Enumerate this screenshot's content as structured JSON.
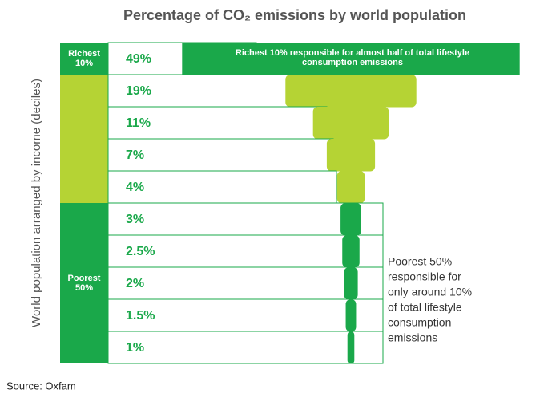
{
  "chart_data": {
    "type": "funnel",
    "title": "Percentage of CO₂ emissions by world population",
    "y_label": "World population arranged by income (deciles)",
    "values": [
      49,
      19,
      11,
      7,
      4,
      3,
      2.5,
      2,
      1.5,
      1
    ],
    "value_labels": [
      "49%",
      "19%",
      "11%",
      "7%",
      "4%",
      "3%",
      "2.5%",
      "2%",
      "1.5%",
      "1%"
    ],
    "colors": [
      "#1aa84a",
      "#b5d334",
      "#b5d334",
      "#b5d334",
      "#b5d334",
      "#1aa84a",
      "#1aa84a",
      "#1aa84a",
      "#1aa84a",
      "#1aa84a"
    ],
    "group_richest": [
      "Richest",
      "10%"
    ],
    "group_poorest": [
      "Poorest",
      "50%"
    ],
    "annotation_richest": [
      "Richest 10% responsible for almost half of total lifestyle",
      "consumption emissions"
    ],
    "annotation_poorest": [
      "Poorest 50%",
      "responsible for",
      "only around 10%",
      "of total lifestyle",
      "consumption",
      "emissions"
    ],
    "source": "Source: Oxfam"
  }
}
